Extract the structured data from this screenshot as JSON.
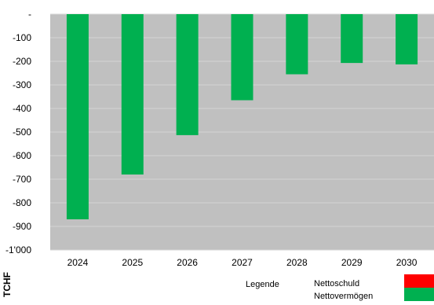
{
  "chart_data": {
    "type": "bar",
    "title": "",
    "xlabel": "",
    "ylabel": "TCHF",
    "categories": [
      "2024",
      "2025",
      "2026",
      "2027",
      "2028",
      "2029",
      "2030"
    ],
    "series": [
      {
        "values": [
          -870,
          -680,
          -513,
          -365,
          -255,
          -207,
          -213
        ]
      }
    ],
    "ylim": [
      -1000,
      0
    ],
    "y_ticks": [
      {
        "value": 0,
        "label": "-"
      },
      {
        "value": -100,
        "label": "-100"
      },
      {
        "value": -200,
        "label": "-200"
      },
      {
        "value": -300,
        "label": "-300"
      },
      {
        "value": -400,
        "label": "-400"
      },
      {
        "value": -500,
        "label": "-500"
      },
      {
        "value": -600,
        "label": "-600"
      },
      {
        "value": -700,
        "label": "-700"
      },
      {
        "value": -800,
        "label": "-800"
      },
      {
        "value": -900,
        "label": "-900"
      },
      {
        "value": -1000,
        "label": "-1'000"
      }
    ],
    "grid": true,
    "plot_background": "#c0c0c0",
    "bar_color": "#00b050",
    "legend": {
      "placement": "bottom-right",
      "title": "Legende",
      "entries": [
        {
          "label": "Nettoschuld",
          "color": "#ff0000"
        },
        {
          "label": "Nettovermögen",
          "color": "#00b050"
        }
      ]
    }
  }
}
